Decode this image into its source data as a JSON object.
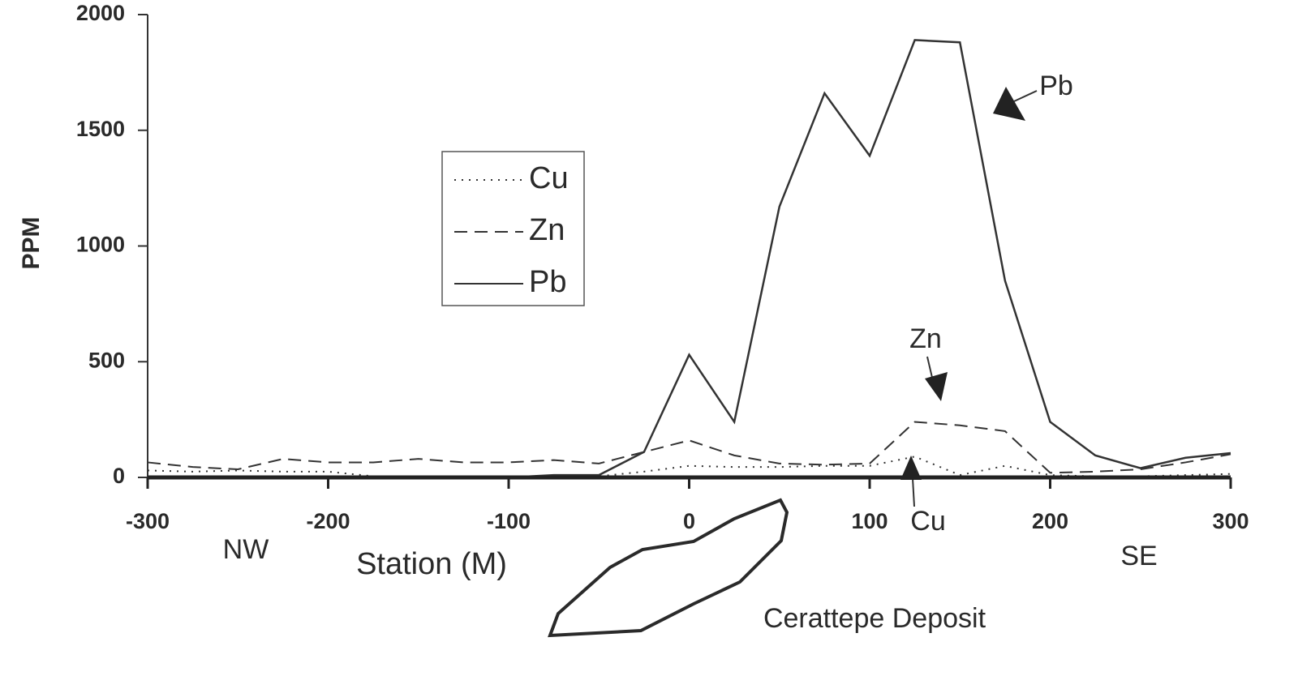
{
  "chart_data": {
    "type": "line",
    "y_label": "PPM",
    "x_label": "Station (M)",
    "x": [
      -300,
      -275,
      -250,
      -225,
      -200,
      -175,
      -150,
      -125,
      -100,
      -75,
      -50,
      -25,
      0,
      25,
      50,
      75,
      100,
      125,
      150,
      175,
      200,
      225,
      250,
      275,
      300
    ],
    "series": [
      {
        "name": "Cu",
        "color": "#333333",
        "dash": "dotted",
        "values": [
          30,
          25,
          30,
          25,
          25,
          5,
          5,
          5,
          5,
          5,
          5,
          25,
          50,
          45,
          45,
          50,
          50,
          90,
          10,
          50,
          10,
          5,
          5,
          10,
          15
        ]
      },
      {
        "name": "Zn",
        "color": "#333333",
        "dash": "dashed",
        "values": [
          65,
          45,
          35,
          80,
          65,
          65,
          80,
          65,
          65,
          75,
          60,
          110,
          160,
          95,
          60,
          55,
          60,
          240,
          225,
          200,
          20,
          25,
          35,
          65,
          100
        ]
      },
      {
        "name": "Pb",
        "color": "#333333",
        "dash": "solid",
        "values": [
          0,
          0,
          0,
          0,
          0,
          0,
          0,
          0,
          0,
          10,
          10,
          110,
          530,
          240,
          1170,
          1660,
          1390,
          1890,
          1880,
          850,
          240,
          95,
          40,
          85,
          105
        ]
      }
    ],
    "xlim": [
      -300,
      300
    ],
    "xticks": [
      -300,
      -200,
      -100,
      0,
      100,
      200,
      300
    ],
    "ylim": [
      0,
      2000
    ],
    "yticks": [
      0,
      500,
      1000,
      1500,
      2000
    ],
    "annotations": [
      {
        "text": "NW"
      },
      {
        "text": "SE"
      },
      {
        "text": "Pb"
      },
      {
        "text": "Zn"
      },
      {
        "text": "Cu"
      },
      {
        "text": "Cerattepe Deposit"
      }
    ]
  }
}
